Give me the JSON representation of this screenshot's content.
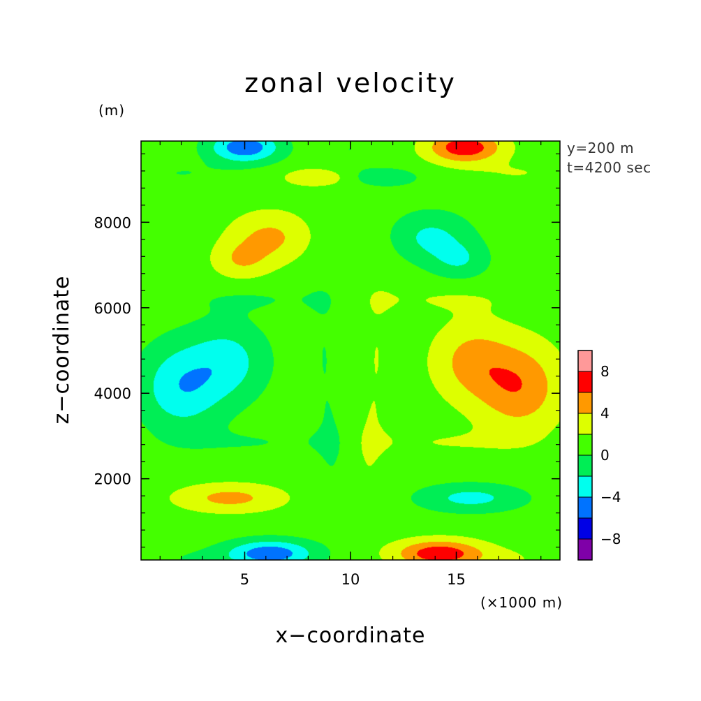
{
  "chart_data": {
    "type": "heatmap",
    "title": "zonal velocity",
    "xlabel": "x−coordinate",
    "ylabel": "z−coordinate",
    "x_unit": "(×1000 m)",
    "y_unit": "(m)",
    "annotations": [
      "y=200 m",
      "t=4200 sec"
    ],
    "xlim": [
      0.1,
      19.9
    ],
    "ylim": [
      100,
      9900
    ],
    "x_ticks": [
      5,
      10,
      15
    ],
    "x_tick_labels": [
      "5",
      "10",
      "15"
    ],
    "y_ticks": [
      2000,
      4000,
      6000,
      8000
    ],
    "y_tick_labels": [
      "2000",
      "4000",
      "6000",
      "8000"
    ],
    "x_minor_step": 1,
    "y_minor_step": 400,
    "colorbar": {
      "levels": [
        -10,
        -8,
        -6,
        -4,
        -2,
        0,
        2,
        4,
        6,
        8,
        10
      ],
      "colors": [
        "#7f00a8",
        "#0000e6",
        "#0073ff",
        "#00ffee",
        "#00ee55",
        "#44ff00",
        "#ddff00",
        "#ff9900",
        "#ff0000",
        "#ff9999"
      ],
      "tick_values": [
        -8,
        -4,
        0,
        4,
        8
      ],
      "tick_labels": [
        "−8",
        "−4",
        "0",
        "4",
        "8"
      ]
    },
    "background_value": 1,
    "features": [
      {
        "x": 5.0,
        "z": 9750,
        "rx": 2.1,
        "rz": 450,
        "v": -6.5
      },
      {
        "x": 15.4,
        "z": 9750,
        "rx": 2.2,
        "rz": 450,
        "v": 6.5
      },
      {
        "x": 6.2,
        "z": 250,
        "rx": 2.6,
        "rz": 400,
        "v": -6.5
      },
      {
        "x": 14.2,
        "z": 250,
        "rx": 2.6,
        "rz": 400,
        "v": 6.5
      },
      {
        "x": 2.0,
        "z": 4150,
        "rx": 2.5,
        "rz": 1300,
        "v": -4.6
      },
      {
        "x": 4.3,
        "z": 4750,
        "rx": 2.3,
        "rz": 1150,
        "v": -3.5
      },
      {
        "x": 18.0,
        "z": 4150,
        "rx": 2.5,
        "rz": 1300,
        "v": 4.6
      },
      {
        "x": 15.7,
        "z": 4750,
        "rx": 2.3,
        "rz": 1150,
        "v": 3.5
      },
      {
        "x": 4.3,
        "z": 1550,
        "rx": 3.2,
        "rz": 420,
        "v": 3.6
      },
      {
        "x": 15.7,
        "z": 1550,
        "rx": 3.2,
        "rz": 420,
        "v": -3.6
      },
      {
        "x": 6.2,
        "z": 7650,
        "rx": 2.4,
        "rz": 750,
        "v": 3.4
      },
      {
        "x": 4.8,
        "z": 7100,
        "rx": 1.7,
        "rz": 550,
        "v": 2.6
      },
      {
        "x": 13.8,
        "z": 7650,
        "rx": 2.4,
        "rz": 750,
        "v": -3.4
      },
      {
        "x": 15.2,
        "z": 7100,
        "rx": 1.7,
        "rz": 550,
        "v": -2.6
      },
      {
        "x": 5.5,
        "z": 2850,
        "rx": 4.5,
        "rz": 400,
        "v": -1.0
      },
      {
        "x": 14.5,
        "z": 2850,
        "rx": 4.5,
        "rz": 400,
        "v": 1.0
      },
      {
        "x": 5.5,
        "z": 6200,
        "rx": 4.5,
        "rz": 420,
        "v": -1.0
      },
      {
        "x": 14.5,
        "z": 6200,
        "rx": 4.5,
        "rz": 420,
        "v": 1.0
      },
      {
        "x": 2.0,
        "z": 9150,
        "rx": 3.0,
        "rz": 350,
        "v": -1.0
      },
      {
        "x": 18.0,
        "z": 9150,
        "rx": 3.0,
        "rz": 350,
        "v": 1.0
      },
      {
        "x": 8.4,
        "z": 9050,
        "rx": 2.0,
        "rz": 280,
        "v": 2.6
      },
      {
        "x": 11.6,
        "z": 9050,
        "rx": 2.0,
        "rz": 280,
        "v": -2.6
      },
      {
        "x": 8.8,
        "z": 5000,
        "rx": 1.5,
        "rz": 3200,
        "v": -1.0
      },
      {
        "x": 11.2,
        "z": 5000,
        "rx": 1.5,
        "rz": 3200,
        "v": 1.0
      },
      {
        "x": 9.3,
        "z": 2500,
        "rx": 1.2,
        "rz": 1600,
        "v": -0.8
      },
      {
        "x": 10.7,
        "z": 2500,
        "rx": 1.2,
        "rz": 1600,
        "v": 0.8
      },
      {
        "x": 2.5,
        "z": 100,
        "rx": 2.5,
        "rz": 400,
        "v": -1.0
      },
      {
        "x": 17.5,
        "z": 100,
        "rx": 2.5,
        "rz": 400,
        "v": 1.0
      },
      {
        "x": 10.0,
        "z": 9700,
        "rx": 1.6,
        "rz": 600,
        "v": 0
      }
    ]
  }
}
